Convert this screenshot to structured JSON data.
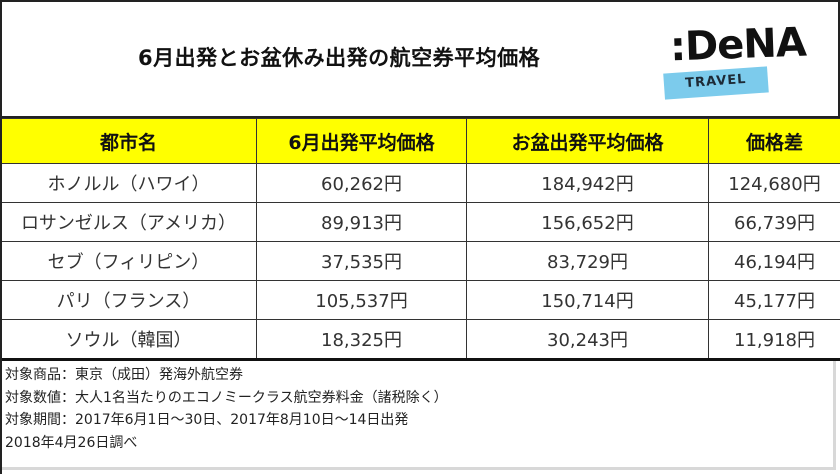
{
  "title": "6月出発とお盆休み出発の航空券平均価格",
  "logo": {
    "word": ":DeNA",
    "band": "TRAVEL",
    "band_color": "#7ccbec"
  },
  "table": {
    "header_color": "#ffff00",
    "headers": [
      "都市名",
      "6月出発平均価格",
      "お盆出発平均価格",
      "価格差"
    ],
    "rows": [
      {
        "city": "ホノルル（ハワイ）",
        "june": "60,262円",
        "obon": "184,942円",
        "diff": "124,680円"
      },
      {
        "city": "ロサンゼルス（アメリカ）",
        "june": "89,913円",
        "obon": "156,652円",
        "diff": "66,739円"
      },
      {
        "city": "セブ（フィリピン）",
        "june": "37,535円",
        "obon": "83,729円",
        "diff": "46,194円"
      },
      {
        "city": "パリ（フランス）",
        "june": "105,537円",
        "obon": "150,714円",
        "diff": "45,177円"
      },
      {
        "city": "ソウル（韓国）",
        "june": "18,325円",
        "obon": "30,243円",
        "diff": "11,918円"
      }
    ]
  },
  "notes": [
    "対象商品：東京（成田）発海外航空券",
    "対象数値：大人1名当たりのエコノミークラス航空券料金（諸税除く）",
    "対象期間：2017年6月1日～30日、2017年8月10日～14日出発",
    "2018年4月26日調べ"
  ]
}
